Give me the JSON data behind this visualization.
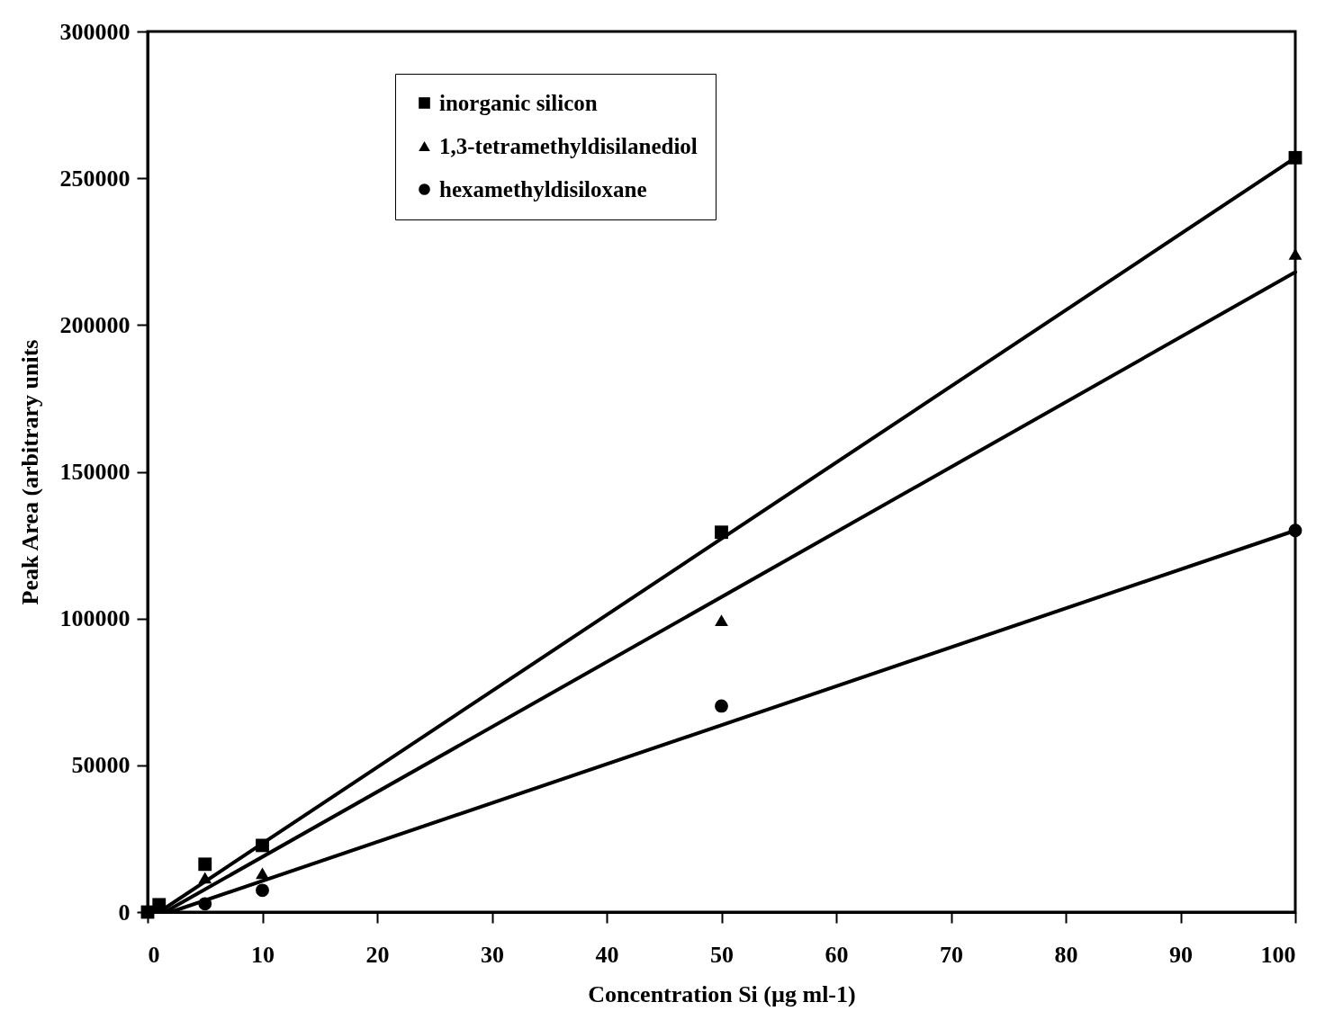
{
  "chart_data": {
    "type": "scatter",
    "xlabel": "Concentration Si (µg ml-1)",
    "ylabel": "Peak Area (arbitrary units",
    "xlim": [
      0,
      100
    ],
    "ylim": [
      0,
      300000
    ],
    "xticks": [
      0,
      10,
      20,
      30,
      40,
      50,
      60,
      70,
      80,
      90,
      100
    ],
    "yticks": [
      0,
      50000,
      100000,
      150000,
      200000,
      250000,
      300000
    ],
    "grid": false,
    "legend": "top",
    "series": [
      {
        "name": "inorganic silicon",
        "marker": "square",
        "color": "#000000",
        "x": [
          0,
          1,
          5,
          10,
          50,
          100
        ],
        "values": [
          0,
          2500,
          16300,
          22700,
          129400,
          257000
        ]
      },
      {
        "name": "1,3-tetramethyldisilanediol",
        "marker": "triangle",
        "color": "#000000",
        "x": [
          5,
          10,
          50,
          100
        ],
        "values": [
          11700,
          13200,
          99400,
          224200
        ]
      },
      {
        "name": "hexamethyldisiloxane",
        "marker": "circle",
        "color": "#000000",
        "x": [
          5,
          10,
          50,
          100
        ],
        "values": [
          2800,
          7400,
          70200,
          130000
        ]
      },
      {
        "type": "line",
        "color": "#000000",
        "x": [
          1,
          100
        ],
        "values": [
          0,
          257000
        ]
      },
      {
        "type": "line",
        "color": "#000000",
        "x": [
          1.5,
          100
        ],
        "values": [
          0,
          218000
        ]
      },
      {
        "type": "line",
        "color": "#000000",
        "x": [
          2,
          100
        ],
        "values": [
          0,
          130000
        ]
      }
    ]
  }
}
